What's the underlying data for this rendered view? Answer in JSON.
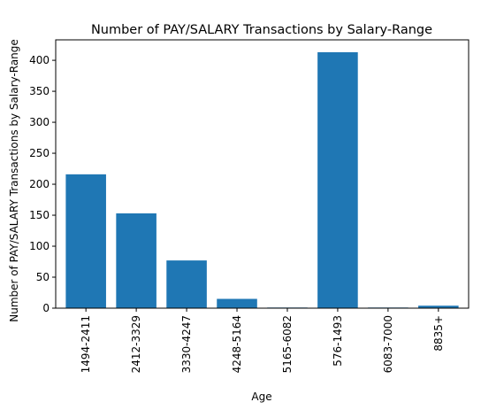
{
  "chart_data": {
    "type": "bar",
    "title": "Number of PAY/SALARY Transactions by Salary-Range",
    "xlabel": "Age",
    "ylabel": "Number of PAY/SALARY Transactions by Salary-Range",
    "categories": [
      "1494-2411",
      "2412-3329",
      "3330-4247",
      "4248-5164",
      "5165-6082",
      "576-1493",
      "6083-7000",
      "8835+"
    ],
    "values": [
      216,
      153,
      77,
      15,
      1,
      413,
      1,
      4
    ],
    "ylim": [
      0,
      433
    ],
    "yticks": [
      0,
      50,
      100,
      150,
      200,
      250,
      300,
      350,
      400
    ],
    "bar_color": "#1f77b4",
    "grid": false,
    "legend": "none"
  }
}
